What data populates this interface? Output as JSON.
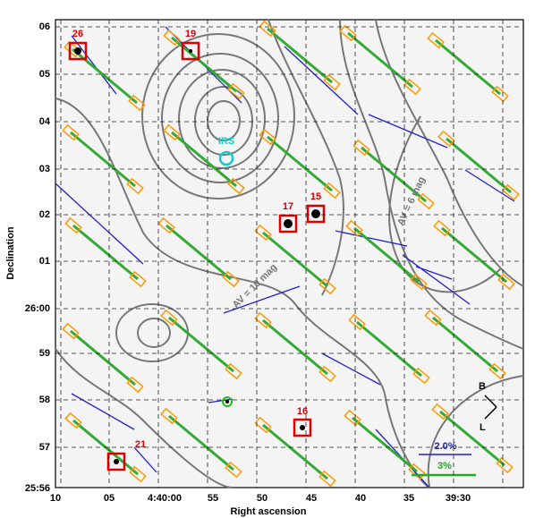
{
  "axes": {
    "x_label": "Right ascension",
    "y_label": "Declination",
    "x_ticks": [
      "10",
      "05",
      "4:40:00",
      "55",
      "50",
      "45",
      "40",
      "35",
      "39:30"
    ],
    "y_ticks": [
      "06",
      "05",
      "04",
      "03",
      "02",
      "01",
      "26:00",
      "59",
      "58",
      "57",
      "25:56"
    ]
  },
  "annotations": {
    "sources": [
      "26",
      "19",
      "17",
      "15",
      "16",
      "21"
    ],
    "irs": "IRS",
    "contours": [
      "AV = 6 mag",
      "AV = 10 mag"
    ],
    "compass": [
      "B",
      "L"
    ],
    "scale": [
      "2.0%",
      "3%"
    ]
  }
}
